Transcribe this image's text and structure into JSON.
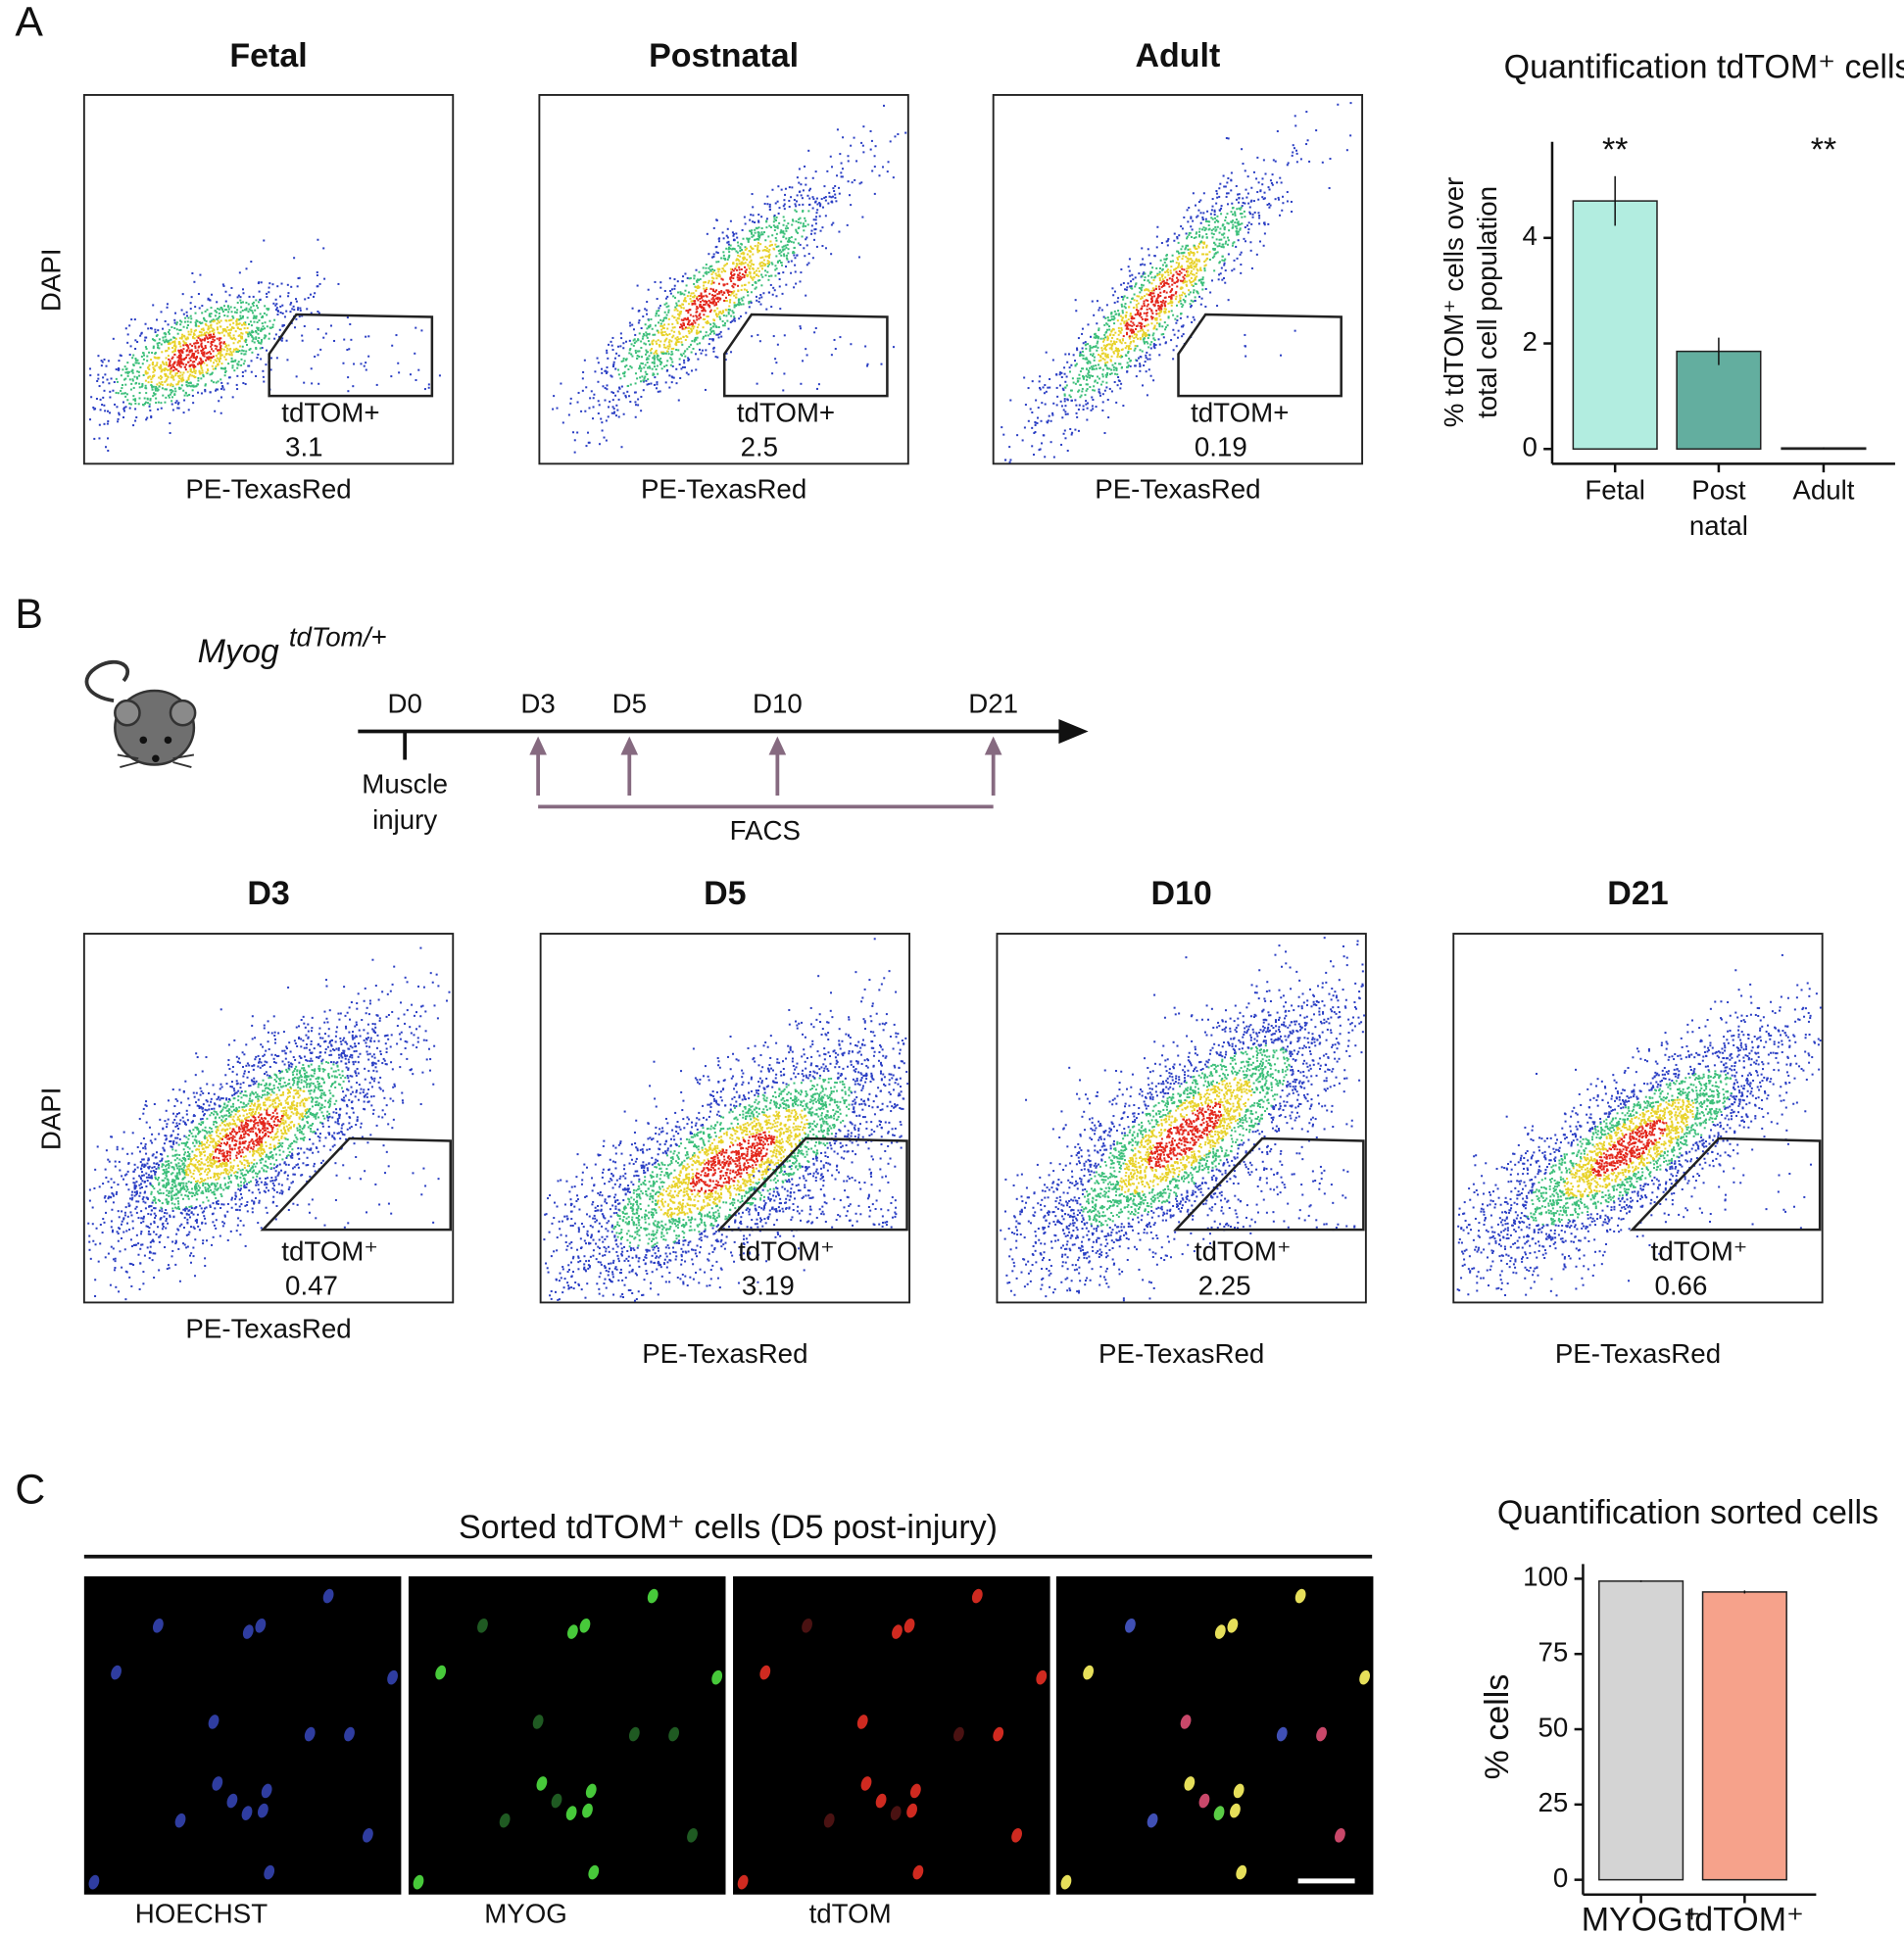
{
  "panel_labels": [
    "A",
    "B",
    "C"
  ],
  "panel_a": {
    "flow_plots": [
      {
        "title": "Fetal",
        "gate": "tdTOM+",
        "value": 3.1
      },
      {
        "title": "Postnatal",
        "gate": "tdTOM+",
        "value": 2.5
      },
      {
        "title": "Adult",
        "gate": "tdTOM+",
        "value": 0.19
      }
    ],
    "y_label": "DAPI",
    "x_label": "PE-TexasRed"
  },
  "panel_b": {
    "strain": "Myog",
    "strain_sup": "tdTom/+",
    "days": [
      "D0",
      "D3",
      "D5",
      "D10",
      "D21"
    ],
    "injury": [
      "Muscle",
      "injury"
    ],
    "sort_label": "FACS",
    "flow_plots": [
      {
        "title": "D3",
        "gate": "tdTOM⁺",
        "value": 0.47
      },
      {
        "title": "D5",
        "gate": "tdTOM⁺",
        "value": 3.19
      },
      {
        "title": "D10",
        "gate": "tdTOM⁺",
        "value": 2.25
      },
      {
        "title": "D21",
        "gate": "tdTOM⁺",
        "value": 0.66
      }
    ],
    "y_label": "DAPI",
    "x_label": "PE-TexasRed"
  },
  "panel_c": {
    "title": "Sorted tdTOM⁺ cells (D5 post-injury)",
    "channels": [
      {
        "name": "HOECHST",
        "color": "#3cb1d6"
      },
      {
        "name": "MYOG",
        "color": "#5bbf2b"
      },
      {
        "name": "tdTOM",
        "color": "#d23a1f"
      }
    ]
  },
  "chart_data": [
    {
      "type": "bar",
      "title": "Quantification tdTOM⁺ cells",
      "y_label": [
        "% tdTOM⁺ cells over",
        "total cell population"
      ],
      "categories": [
        [
          "Fetal"
        ],
        [
          "Post",
          "natal"
        ],
        [
          "Adult"
        ]
      ],
      "values": [
        4.7,
        1.85,
        0.02
      ],
      "errors": [
        0.47,
        0.26,
        0.01
      ],
      "colors": [
        "#b2ede0",
        "#63ae9f",
        "#2f7f70"
      ],
      "annotations": [
        "**",
        null,
        "**"
      ],
      "ylim": [
        -0.28,
        5.82
      ],
      "yticks": [
        0,
        2,
        4
      ]
    },
    {
      "type": "bar",
      "title": "Quantification sorted cells",
      "y_label": [
        "% cells"
      ],
      "categories": [
        [
          "MYOG⁺"
        ],
        [
          "tdTOM⁺"
        ]
      ],
      "values": [
        99.2,
        95.6
      ],
      "errors": [
        0.3,
        0.5
      ],
      "colors": [
        "#d4d4d4",
        "#f6a28b"
      ],
      "annotations": [
        null,
        null
      ],
      "ylim": [
        -4.9,
        104.9
      ],
      "yticks": [
        0,
        25,
        50,
        75,
        100
      ]
    }
  ]
}
